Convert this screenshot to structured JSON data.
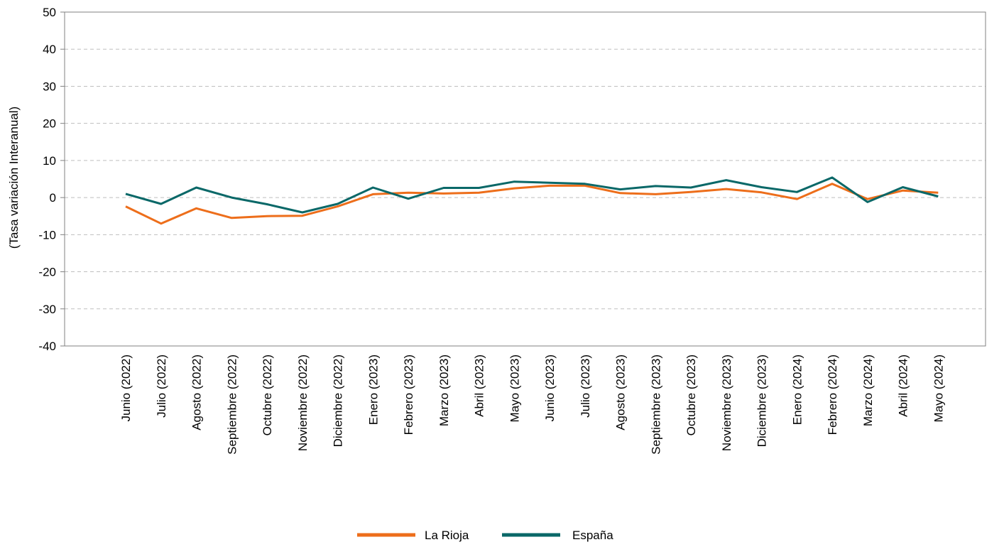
{
  "chart_data": {
    "type": "line",
    "title": "",
    "xlabel": "",
    "ylabel": "(Tasa variación Interanual)",
    "ylim": [
      -40,
      50
    ],
    "yticks": [
      50,
      40,
      30,
      20,
      10,
      0,
      -10,
      -20,
      -30,
      -40
    ],
    "grid": "horizontal dashed",
    "legend_position": "bottom-center",
    "categories": [
      "Junio (2022)",
      "Julio (2022)",
      "Agosto (2022)",
      "Septiembre (2022)",
      "Octubre (2022)",
      "Noviembre (2022)",
      "Diciembre (2022)",
      "Enero (2023)",
      "Febrero (2023)",
      "Marzo (2023)",
      "Abril (2023)",
      "Mayo (2023)",
      "Junio (2023)",
      "Julio (2023)",
      "Agosto (2023)",
      "Septiembre (2023)",
      "Octubre (2023)",
      "Noviembre (2023)",
      "Diciembre (2023)",
      "Enero (2024)",
      "Febrero (2024)",
      "Marzo (2024)",
      "Abril (2024)",
      "Mayo (2024)"
    ],
    "series": [
      {
        "name": "La Rioja",
        "color": "#ED6E1B",
        "values": [
          -2.4,
          -7.0,
          -2.9,
          -5.5,
          -5.0,
          -4.9,
          -2.4,
          0.9,
          1.3,
          1.1,
          1.3,
          2.5,
          3.2,
          3.2,
          1.2,
          0.9,
          1.5,
          2.3,
          1.4,
          -0.4,
          3.7,
          -0.4,
          1.9,
          1.3
        ]
      },
      {
        "name": "España",
        "color": "#0A6868",
        "values": [
          1.0,
          -1.7,
          2.7,
          0.0,
          -1.8,
          -4.0,
          -1.7,
          2.7,
          -0.3,
          2.6,
          2.6,
          4.3,
          4.0,
          3.7,
          2.2,
          3.1,
          2.7,
          4.7,
          2.8,
          1.5,
          5.4,
          -1.2,
          2.8,
          0.3
        ]
      }
    ]
  }
}
